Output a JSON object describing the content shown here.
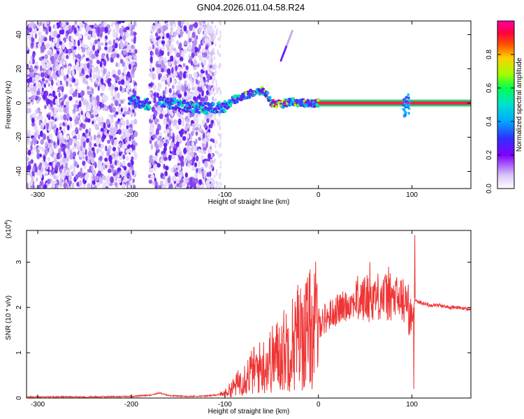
{
  "figure_title": "GN04.2026.011.04.58.R24",
  "chart_data": [
    {
      "type": "heatmap",
      "title": "GN04.2026.011.04.58.R24",
      "xlabel": "Height of straight line (km)",
      "ylabel": "Frequency (Hz)",
      "xlim": [
        -312,
        163
      ],
      "ylim": [
        -50,
        48
      ],
      "xticks": [
        -300,
        -200,
        -100,
        0,
        100
      ],
      "xtick_labels": [
        "-300",
        "-200",
        "-100",
        "0",
        "100"
      ],
      "yticks": [
        -40,
        -20,
        0,
        20,
        40
      ],
      "ytick_labels": [
        "-40",
        "-20",
        "0",
        "20",
        "40"
      ],
      "colorbar": {
        "label": "Normalized spectral amplitude",
        "range": [
          0,
          1
        ],
        "ticks": [
          0,
          0.2,
          0.4,
          0.6,
          0.8
        ],
        "tick_labels": [
          "0.0",
          "0.2",
          "0.4",
          "0.6",
          "0.8"
        ],
        "colors": [
          "#ffffff",
          "#d4bdf5",
          "#8000ff",
          "#3030ff",
          "#00b0ff",
          "#00e0c0",
          "#00ff40",
          "#a0ff00",
          "#ffd000",
          "#ff5000",
          "#ff0040",
          "#ff00a0"
        ]
      },
      "features": {
        "noise_regions_km": [
          [
            -312,
            -195
          ],
          [
            -180,
            -112
          ]
        ],
        "noise_gap_km": [
          -195,
          -180
        ],
        "scatter_tail_end_km": -110,
        "signal_trace": {
          "x": [
            -200,
            -190,
            -180,
            -170,
            -160,
            -140,
            -120,
            -110,
            -100,
            -90,
            -80,
            -70,
            -60,
            -55,
            -50,
            -40,
            -30,
            -20,
            -10,
            0,
            20,
            50,
            80,
            90,
            95,
            100,
            130,
            163
          ],
          "y": [
            2,
            0,
            -1,
            1,
            0,
            -2,
            -3,
            -3,
            -2,
            2,
            4,
            6,
            7,
            5,
            0,
            -1,
            1,
            0,
            0,
            0,
            0,
            0,
            0,
            1,
            3,
            0,
            0,
            0
          ]
        },
        "diagonal_streak": {
          "x": [
            -40,
            -28
          ],
          "y": [
            25,
            42
          ]
        }
      }
    },
    {
      "type": "line",
      "xlabel": "Height of straight line (km)",
      "ylabel": "SNR (10 * v/v)",
      "y_multiplier": "(x10^4)",
      "xlim": [
        -312,
        163
      ],
      "ylim": [
        0,
        3.7
      ],
      "xticks": [
        -300,
        -200,
        -100,
        0,
        100
      ],
      "xtick_labels": [
        "-300",
        "-200",
        "-100",
        "0",
        "100"
      ],
      "yticks": [
        0,
        1,
        2,
        3
      ],
      "ytick_labels": [
        "0",
        "1",
        "2",
        "3"
      ],
      "color": "#ef3535",
      "x": [
        -312,
        -250,
        -200,
        -180,
        -170,
        -160,
        -140,
        -120,
        -110,
        -100,
        -90,
        -80,
        -70,
        -60,
        -50,
        -40,
        -30,
        -20,
        -10,
        0,
        10,
        20,
        30,
        40,
        50,
        60,
        70,
        80,
        90,
        95,
        100,
        103,
        105,
        110,
        120,
        130,
        140,
        150,
        163
      ],
      "y": [
        0.01,
        0.01,
        0.02,
        0.05,
        0.1,
        0.04,
        0.02,
        0.03,
        0.05,
        0.1,
        0.25,
        0.45,
        0.6,
        0.7,
        0.85,
        1.0,
        1.2,
        1.35,
        1.5,
        1.65,
        1.8,
        1.95,
        2.05,
        2.15,
        2.2,
        2.25,
        2.25,
        2.2,
        2.15,
        2.1,
        1.6,
        2.2,
        2.15,
        2.1,
        2.05,
        2.05,
        2.0,
        2.0,
        1.95
      ],
      "spikes": [
        {
          "x": -22,
          "y": 2.5
        },
        {
          "x": -12,
          "y": 1.9
        },
        {
          "x": 55,
          "y": 3.0
        },
        {
          "x": 75,
          "y": 2.9
        },
        {
          "x": 103,
          "y": 3.6
        },
        {
          "x": 102,
          "y": 0.2
        }
      ]
    }
  ]
}
